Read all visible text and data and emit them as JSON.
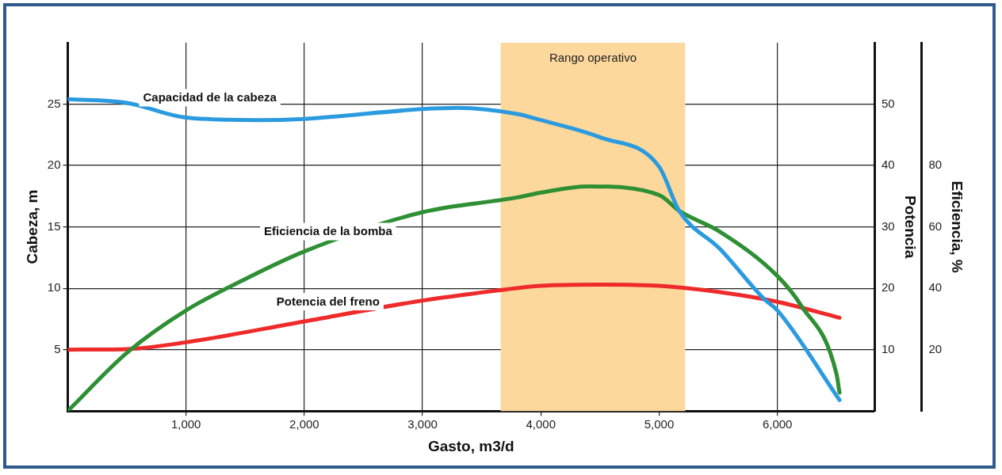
{
  "chart_data": {
    "type": "line",
    "xlabel": "Gasto, m3/d",
    "ylabel": "Cabeza, m",
    "y2label": "Potencia",
    "y3label": "Eficiencia, %",
    "xlim": [
      0,
      6820
    ],
    "xticks": [
      {
        "value": 1000,
        "label": "1,000"
      },
      {
        "value": 2000,
        "label": "2,000"
      },
      {
        "value": 3000,
        "label": "3,000"
      },
      {
        "value": 4000,
        "label": "4,000"
      },
      {
        "value": 5000,
        "label": "5,000"
      },
      {
        "value": 6000,
        "label": "6,000"
      }
    ],
    "ylim": [
      0,
      30
    ],
    "yticks": [
      5,
      10,
      15,
      20,
      25
    ],
    "y2lim": [
      0,
      60
    ],
    "y2ticks": [
      10,
      20,
      30,
      40,
      50
    ],
    "y3lim": [
      0,
      120
    ],
    "y3ticks": [
      20,
      40,
      60,
      80
    ],
    "grid": true,
    "legend": false,
    "marker": "none",
    "line_style": "solid",
    "bands": [
      {
        "axis": "x",
        "from": 3660,
        "to": 5220,
        "label": "Rango operativo",
        "color": "#fdd89c"
      }
    ],
    "series": [
      {
        "name": "Capacidad de la cabeza",
        "color": "#2b9be0",
        "x": [
          0,
          500,
          1000,
          1600,
          2000,
          3000,
          3300,
          3800,
          4000,
          4500,
          5000,
          5170,
          5515,
          5890,
          6000,
          6525
        ],
        "values": [
          25.4,
          25.1,
          23.9,
          23.7,
          23.8,
          24.6,
          24.7,
          24.2,
          23.7,
          22.3,
          19.9,
          16.3,
          13.2,
          9.1,
          8.2,
          0.9
        ]
      },
      {
        "name": "Eficiencia de la bomba",
        "color": "#2e8f34",
        "axis": "y3",
        "x": [
          0,
          500,
          1000,
          1500,
          2000,
          3000,
          3800,
          4000,
          4400,
          5000,
          5170,
          5515,
          6000,
          6200,
          6500,
          6525
        ],
        "values": [
          0,
          19,
          32.8,
          43,
          52,
          64.8,
          69.6,
          71.2,
          73.2,
          70.4,
          65.2,
          58.4,
          44,
          34.4,
          12,
          6
        ]
      },
      {
        "name": "Potencia del freno",
        "color": "#ee2a2a",
        "axis": "y2",
        "x": [
          0,
          500,
          1000,
          2000,
          3000,
          3700,
          4000,
          4500,
          5000,
          5500,
          6000,
          6525
        ],
        "values": [
          10,
          10.1,
          11.2,
          14.6,
          18,
          19.8,
          20.4,
          20.6,
          20.4,
          19.4,
          17.8,
          15.2
        ]
      }
    ]
  }
}
